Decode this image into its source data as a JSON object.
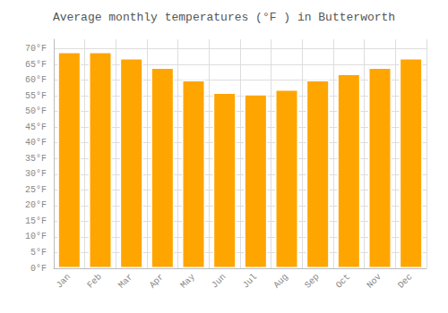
{
  "chart_data": {
    "type": "bar",
    "title": "Average monthly temperatures (°F ) in Butterworth",
    "categories": [
      "Jan",
      "Feb",
      "Mar",
      "Apr",
      "May",
      "Jun",
      "Jul",
      "Aug",
      "Sep",
      "Oct",
      "Nov",
      "Dec"
    ],
    "values": [
      69,
      69,
      67,
      64,
      60,
      56,
      55.5,
      57,
      60,
      62,
      64,
      67
    ],
    "color": "#FFA500",
    "ylim": [
      0,
      73
    ],
    "yticks": [
      {
        "value": 0,
        "label": "0°F"
      },
      {
        "value": 5,
        "label": "5°F"
      },
      {
        "value": 10,
        "label": "10°F"
      },
      {
        "value": 15,
        "label": "15°F"
      },
      {
        "value": 20,
        "label": "20°F"
      },
      {
        "value": 25,
        "label": "25°F"
      },
      {
        "value": 30,
        "label": "30°F"
      },
      {
        "value": 35,
        "label": "35°F"
      },
      {
        "value": 40,
        "label": "40°F"
      },
      {
        "value": 45,
        "label": "45°F"
      },
      {
        "value": 50,
        "label": "50°F"
      },
      {
        "value": 55,
        "label": "55°F"
      },
      {
        "value": 60,
        "label": "60°F"
      },
      {
        "value": 65,
        "label": "65°F"
      },
      {
        "value": 70,
        "label": "70°F"
      }
    ],
    "grid": true
  }
}
